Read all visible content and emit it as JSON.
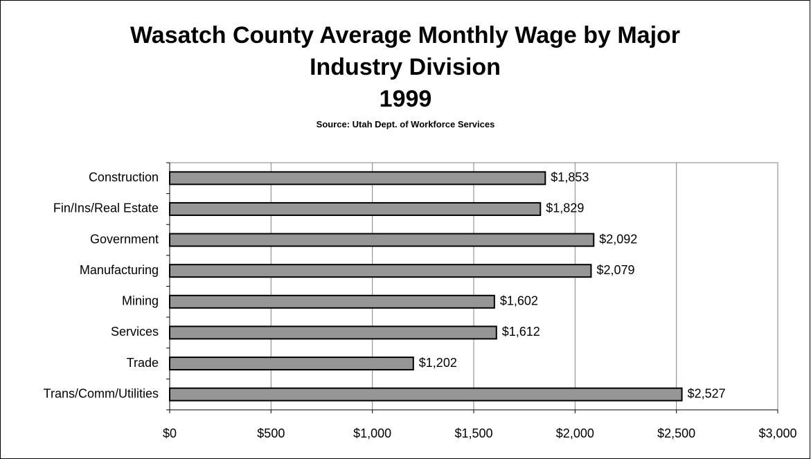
{
  "chart_data": {
    "type": "bar",
    "orientation": "horizontal",
    "title": "Wasatch County Average Monthly Wage by Major Industry Division",
    "subtitle": "1999",
    "source": "Source: Utah Dept. of Workforce Services",
    "categories": [
      "Construction",
      "Fin/Ins/Real Estate",
      "Government",
      "Manufacturing",
      "Mining",
      "Services",
      "Trade",
      "Trans/Comm/Utilities"
    ],
    "values": [
      1853,
      1829,
      2092,
      2079,
      1602,
      1612,
      1202,
      2527
    ],
    "value_labels": [
      "$1,853",
      "$1,829",
      "$2,092",
      "$2,079",
      "$1,602",
      "$1,612",
      "$1,202",
      "$2,527"
    ],
    "color": "#969696",
    "xlim": [
      0,
      3000
    ],
    "xticks": [
      {
        "value": 0,
        "label": "$0"
      },
      {
        "value": 500,
        "label": "$500"
      },
      {
        "value": 1000,
        "label": "$1,000"
      },
      {
        "value": 1500,
        "label": "$1,500"
      },
      {
        "value": 2000,
        "label": "$2,000"
      },
      {
        "value": 2500,
        "label": "$2,500"
      },
      {
        "value": 3000,
        "label": "$3,000"
      }
    ],
    "grid": true
  }
}
